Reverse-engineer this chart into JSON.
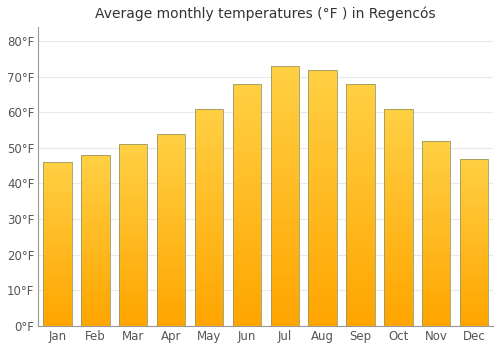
{
  "months": [
    "Jan",
    "Feb",
    "Mar",
    "Apr",
    "May",
    "Jun",
    "Jul",
    "Aug",
    "Sep",
    "Oct",
    "Nov",
    "Dec"
  ],
  "values": [
    46,
    48,
    51,
    54,
    61,
    68,
    73,
    72,
    68,
    61,
    52,
    47
  ],
  "bar_color_bottom": "#FFA500",
  "bar_color_top": "#FFD044",
  "bar_edge_color": "#B8860B",
  "title": "Average monthly temperatures (°F ) in Regencós",
  "title_fontsize": 10,
  "ytick_labels": [
    "0°F",
    "10°F",
    "20°F",
    "30°F",
    "40°F",
    "50°F",
    "60°F",
    "70°F",
    "80°F"
  ],
  "ytick_values": [
    0,
    10,
    20,
    30,
    40,
    50,
    60,
    70,
    80
  ],
  "ylim": [
    0,
    84
  ],
  "background_color": "#ffffff",
  "grid_color": "#e8e8e8",
  "tick_color": "#555555"
}
